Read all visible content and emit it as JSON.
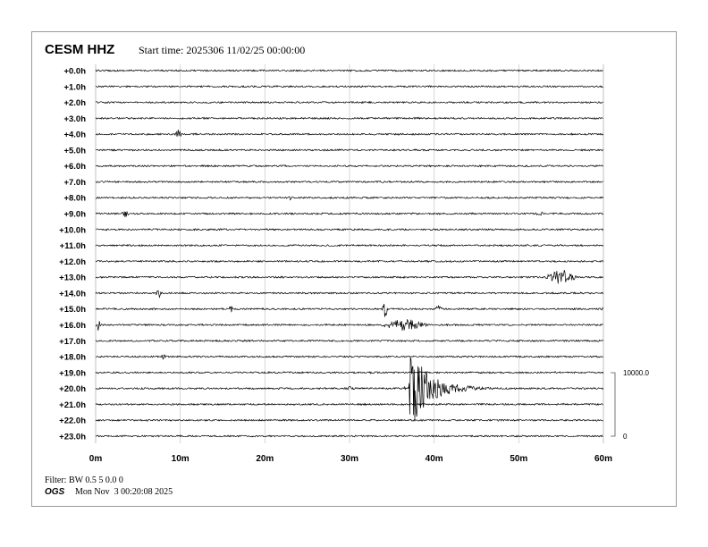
{
  "header": {
    "station": "CESM HHZ",
    "start_time": "Start time: 2025306 11/02/25 00:00:00"
  },
  "footer": {
    "filter": "Filter: BW 0.5 5 0.0 0",
    "agency": "OGS",
    "timestamp": "Mon Nov  3 00:20:08 2025"
  },
  "chart_data": {
    "type": "line",
    "subtype": "helicorder",
    "row_labels": [
      "+0.0h",
      "+1.0h",
      "+2.0h",
      "+3.0h",
      "+4.0h",
      "+5.0h",
      "+6.0h",
      "+7.0h",
      "+8.0h",
      "+9.0h",
      "+10.0h",
      "+11.0h",
      "+12.0h",
      "+13.0h",
      "+14.0h",
      "+15.0h",
      "+16.0h",
      "+17.0h",
      "+18.0h",
      "+19.0h",
      "+20.0h",
      "+21.0h",
      "+22.0h",
      "+23.0h"
    ],
    "x_ticks": [
      "0m",
      "10m",
      "20m",
      "30m",
      "40m",
      "50m",
      "60m"
    ],
    "xlim": [
      0,
      60
    ],
    "grid": true,
    "scale_bar": {
      "top_label": "10000.0",
      "bottom_label": "0"
    },
    "trace_color": "#000000",
    "grid_color": "#cccccc",
    "events": [
      {
        "hour": 4,
        "minute": 9.8,
        "amplitude": 6,
        "duration": 0.6
      },
      {
        "hour": 8,
        "minute": 23,
        "amplitude": 2.5,
        "duration": 0.4
      },
      {
        "hour": 9,
        "minute": 3.5,
        "amplitude": 5,
        "duration": 0.6
      },
      {
        "hour": 9,
        "minute": 52.5,
        "amplitude": 2.5,
        "duration": 1.5
      },
      {
        "hour": 13,
        "minute": 22,
        "amplitude": 2.5,
        "duration": 1.0
      },
      {
        "hour": 13,
        "minute": 55,
        "amplitude": 10,
        "duration": 4
      },
      {
        "hour": 14,
        "minute": 7.5,
        "amplitude": 5,
        "duration": 1.2
      },
      {
        "hour": 15,
        "minute": 16,
        "amplitude": 4,
        "duration": 0.4
      },
      {
        "hour": 15,
        "minute": 34.2,
        "amplitude": 10,
        "duration": 0.6
      },
      {
        "hour": 15,
        "minute": 40.5,
        "amplitude": 4,
        "duration": 1.0
      },
      {
        "hour": 15,
        "minute": 59.8,
        "amplitude": 4,
        "duration": 0.2
      },
      {
        "hour": 16,
        "minute": 0.3,
        "amplitude": 7,
        "duration": 0.4
      },
      {
        "hour": 16,
        "minute": 36.5,
        "amplitude": 8,
        "duration": 6
      },
      {
        "hour": 18,
        "minute": 8,
        "amplitude": 3,
        "duration": 0.8
      },
      {
        "hour": 20,
        "minute": 30,
        "amplitude": 3,
        "duration": 1.5
      },
      {
        "hour": 20,
        "minute": 37,
        "amplitude": 45,
        "duration": 16
      }
    ]
  }
}
